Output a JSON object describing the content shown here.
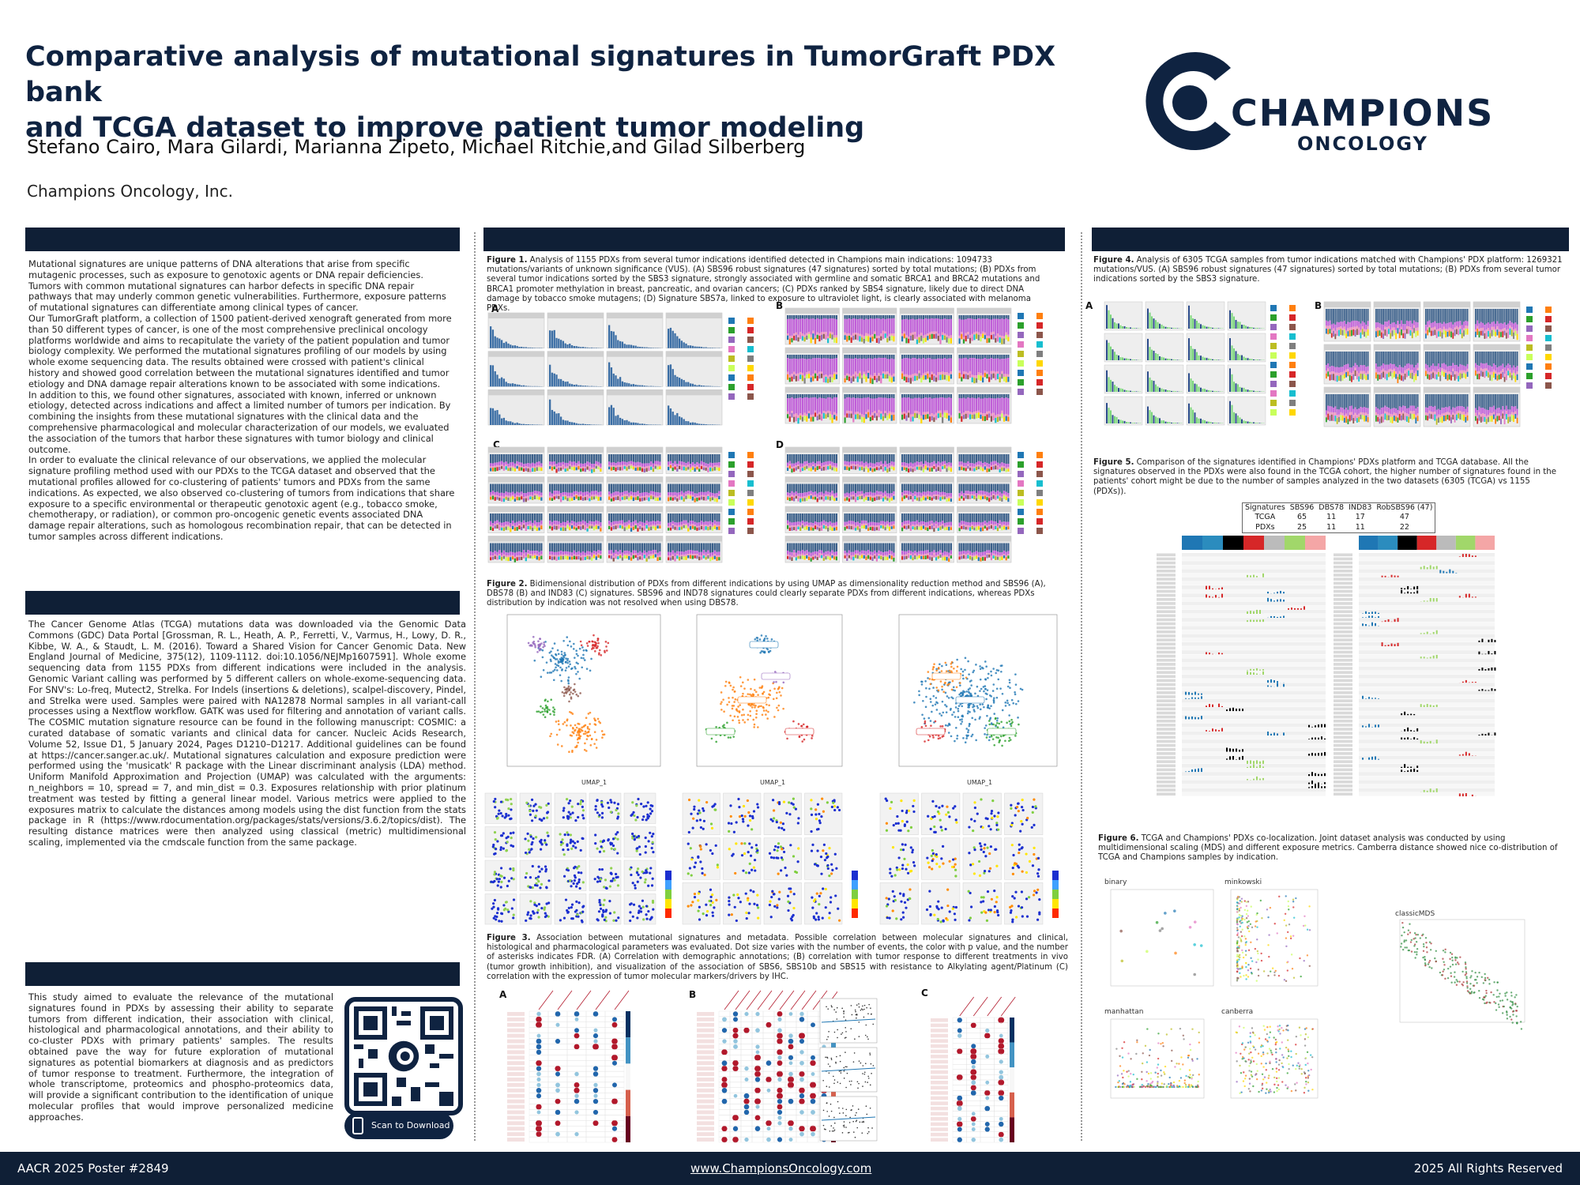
{
  "header": {
    "title_line1": "Comparative analysis of mutational signatures in TumorGraft PDX bank",
    "title_line2": "and TCGA dataset to improve patient tumor modeling",
    "authors": "Stefano Cairo, Mara Gilardi, Marianna Zipeto, Michael Ritchie,and Gilad Silberberg",
    "affiliation": "Champions Oncology, Inc."
  },
  "logo": {
    "word1": "CHAMPIONS",
    "word2": "ONCOLOGY"
  },
  "intro": {
    "text": "Mutational signatures are unique patterns of DNA alterations that arise from specific mutagenic processes, such as exposure to genotoxic agents or DNA repair deficiencies. Tumors with common mutational signatures can harbor defects in specific DNA repair pathways that may underly common genetic vulnerabilities. Furthermore, exposure patterns of mutational signatures can differentiate among clinical types of cancer.\nOur TumorGraft platform, a collection of 1500 patient-derived xenograft generated from more than 50 different types of cancer, is one of the most comprehensive preclinical oncology platforms worldwide and aims to recapitulate the variety of the patient population and tumor biology complexity. We performed the mutational signatures profiling of our models by using whole exome sequencing data. The results obtained were crossed with patient's clinical history and showed good correlation between the mutational signatures identified and tumor etiology and DNA damage repair alterations known to be associated with some indications.\nIn addition to this, we found other signatures, associated with known, inferred or unknown etiology, detected across indications and affect a limited number of tumors per indication. By combining the insights from these mutational signatures with the clinical data and the comprehensive pharmacological and molecular characterization of our models, we evaluated the association of the tumors that harbor these signatures with tumor biology and clinical outcome.\nIn order to evaluate the clinical relevance of our observations, we applied the molecular signature profiling method used with our PDXs to the TCGA dataset and observed that the mutational profiles allowed for co-clustering of patients' tumors and PDXs from the same indications. As expected, we also observed co-clustering of tumors from indications that share exposure to a specific environmental or therapeutic genotoxic agent (e.g., tobacco smoke, chemotherapy, or radiation), or common pro-oncogenic genetic events associated DNA damage repair alterations, such as homologous recombination repair, that can be detected in tumor samples across different indications."
  },
  "methods": {
    "text": "The Cancer Genome Atlas (TCGA) mutations data was downloaded via the Genomic Data Commons (GDC) Data Portal [Grossman, R. L., Heath, A. P., Ferretti, V., Varmus, H., Lowy, D. R., Kibbe, W. A., & Staudt, L. M. (2016). Toward a Shared Vision for Cancer Genomic Data. New England Journal of Medicine, 375(12), 1109-1112. doi:10.1056/NEJMp1607591]. Whole exome sequencing data from 1155 PDXs from different indications were included in the analysis. Genomic Variant calling was performed by 5 different callers on whole-exome-sequencing data. For SNV's: Lo-freq, Mutect2, Strelka. For Indels (insertions & deletions), scalpel-discovery, Pindel, and Strelka were used. Samples were paired with NA12878 Normal samples in all variant-call processes using a Nextflow workflow. GATK was used for filtering and annotation of variant calls. The COSMIC mutation signature resource can be found in the following manuscript: COSMIC: a curated database of somatic variants and clinical data for cancer. Nucleic Acids Research, Volume 52, Issue D1, 5 January 2024, Pages D1210–D1217. Additional guidelines can be found at https://cancer.sanger.ac.uk/. Mutational signatures calculation and exposure prediction were performed using the 'musicatk' R package with the Linear discriminant analysis (LDA) method. Uniform Manifold Approximation and Projection (UMAP) was calculated with the arguments: n_neighbors = 10, spread = 7, and min_dist = 0.3. Exposures relationship with prior platinum treatment was tested by fitting a general linear model. Various metrics were applied to the exposures matrix to calculate the distances among models using the dist function from the stats package in R (https://www.rdocumentation.org/packages/stats/versions/3.6.2/topics/dist). The resulting distance matrices were then analyzed using classical (metric) multidimensional scaling, implemented via the cmdscale function from the same package."
  },
  "conclusion": {
    "text": "This study aimed to evaluate the relevance of the mutational signatures found in PDXs by assessing their ability to separate tumors from different indication, their association with clinical, histological and pharmacological annotations, and their ability to co-cluster PDXs with primary patients' samples. The results obtained pave the way for future exploration of mutational signatures as potential biomarkers at diagnosis and as predictors of tumor response to treatment. Furthermore, the integration of whole transcriptome, proteomics and phospho-proteomics data, will provide a significant contribution to the identification of unique molecular profiles that would improve personalized medicine approaches.",
    "qr_label": "Scan to Download"
  },
  "figures": {
    "fig1_label": "Figure 1.",
    "fig1_caption": " Analysis of 1155 PDXs from several tumor indications identified detected in Champions main indications: 1094733 mutations/variants of unknown significance (VUS). (A) SBS96 robust signatures (47 signatures) sorted by total mutations; (B) PDXs from several tumor indications sorted by the SBS3 signature, strongly associated with germline and somatic BRCA1 and BRCA2 mutations and BRCA1 promoter methylation in breast, pancreatic, and ovarian cancers; (C) PDXs ranked by SBS4 signature, likely due to direct DNA damage by tobacco smoke mutagens; (D) Signature SBS7a, linked to exposure to ultraviolet light, is clearly associated with melanoma PDXs.",
    "fig2_label": "Figure 2.",
    "fig2_caption": " Bidimensional distribution of PDXs from different indications by using UMAP as dimensionality reduction method and SBS96 (A), DBS78 (B) and IND83 (C) signatures. SBS96 and IND78 signatures could clearly separate PDXs from different indications, whereas PDXs distribution by indication was not resolved when using DBS78.",
    "fig3_label": "Figure 3.",
    "fig3_caption": " Association between mutational signatures and metadata. Possible correlation between molecular signatures and clinical, histological and pharmacological parameters was evaluated. Dot size varies with the number of events, the color with p value, and the number of asterisks indicates FDR. (A) Correlation with demographic annotations; (B) correlation with tumor response to different treatments in vivo (tumor growth inhibition), and visualization of the association of SBS6, SBS10b and SBS15 with resistance to Alkylating agent/Platinum (C) correlation with the expression of tumor molecular markers/drivers by IHC.",
    "fig4_label": "Figure 4.",
    "fig4_caption": " Analysis of 6305 TCGA samples from tumor indications matched with Champions' PDX platform: 1269321 mutations/VUS. (A) SBS96 robust signatures (47 signatures) sorted by total mutations; (B) PDXs from several tumor indications sorted by the SBS3 signature.",
    "fig5_label": "Figure 5.",
    "fig5_caption": " Comparison of the signatures identified in Champions' PDXs platform and TCGA database. All the signatures observed in the PDXs were also found in the TCGA cohort, the higher number of signatures found in the patients' cohort might be due to the number of samples analyzed in the two datasets (6305 (TCGA) vs 1155 (PDXs)).",
    "fig6_label": "Figure 6.",
    "fig6_caption": " TCGA and Champions' PDXs co-localization. Joint dataset analysis was conducted by using multidimensional scaling (MDS) and different exposure metrics. Camberra distance showed nice co-distribution of TCGA and Champions samples by indication."
  },
  "panel_letters": {
    "A": "A",
    "B": "B",
    "C": "C",
    "D": "D"
  },
  "fig5_table": {
    "headers": [
      "Signatures",
      "SBS96",
      "DBS78",
      "IND83",
      "RobSBS96 (47)"
    ],
    "rows": [
      [
        "TCGA",
        "65",
        "11",
        "17",
        "47"
      ],
      [
        "PDXs",
        "25",
        "11",
        "11",
        "22"
      ]
    ]
  },
  "fig6_labels": {
    "binary": "binary",
    "minkowski": "minkowski",
    "manhattan": "manhattan",
    "canberra": "canberra",
    "classic": "classicMDS"
  },
  "umap_axes": {
    "x": "UMAP_1",
    "y": "UMAP_2"
  },
  "footer": {
    "left": "AACR 2025 Poster #2849",
    "center": "www.ChampionsOncology.com",
    "right": "2025 All Rights Reserved"
  },
  "colors": {
    "navy": "#0f1f36",
    "title": "#0f2341"
  }
}
